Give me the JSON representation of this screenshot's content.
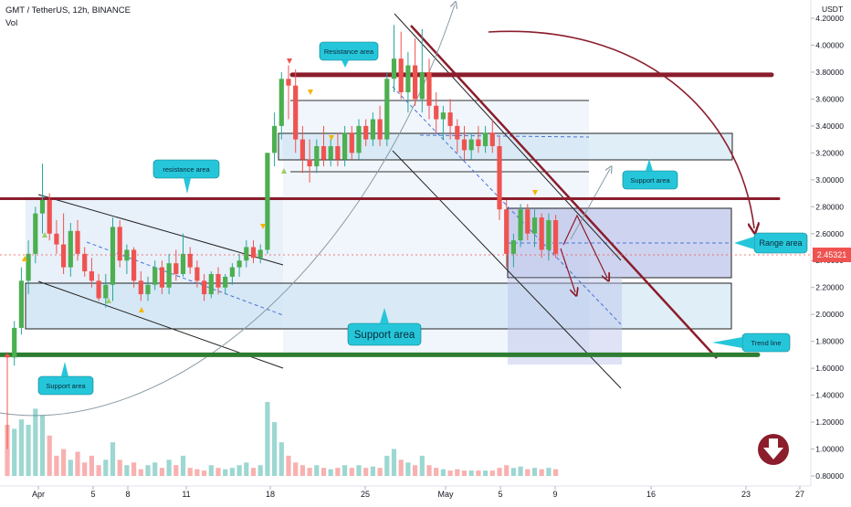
{
  "header": {
    "symbol_line": "GMT / TetherUS, 12h, BINANCE",
    "volume_label": "Vol",
    "currency": "USDT"
  },
  "price_axis": {
    "ticks": [
      "4.20000",
      "4.00000",
      "3.80000",
      "3.60000",
      "3.40000",
      "3.20000",
      "3.00000",
      "2.80000",
      "2.60000",
      "2.40000",
      "2.20000",
      "2.00000",
      "1.80000",
      "1.60000",
      "1.40000",
      "1.20000",
      "1.00000",
      "0.80000"
    ],
    "current_price": "2.45321"
  },
  "time_axis": {
    "ticks": [
      "Apr",
      "5",
      "8",
      "11",
      "18",
      "25",
      "May",
      "5",
      "9",
      "16",
      "23",
      "27"
    ]
  },
  "annotations": {
    "resistance_upper": "Resistance area",
    "resistance_left": "resistance area",
    "support_right": "Support area",
    "range": "Range area",
    "support_center": "Support area",
    "trend_line": "Trend line",
    "support_left": "Support area"
  },
  "colors": {
    "up": "#26a69a",
    "up_body": "#4caf50",
    "down": "#ef5350",
    "zone_fill": "#d6e4f5",
    "callout": "#26c6da",
    "resistance_line": "#8b1d2c",
    "support_line": "#2e7d32",
    "arrow_dark_red": "#8b1d2c"
  },
  "chart_data": {
    "type": "candlestick",
    "interval": "12h",
    "ylim": [
      0.75,
      4.3
    ],
    "xlim": [
      -3,
      121
    ],
    "candles": [
      {
        "t": 0,
        "o": 1.7,
        "h": 1.72,
        "l": 1.0,
        "c": 1.68
      },
      {
        "t": 1,
        "o": 1.68,
        "h": 1.95,
        "l": 1.62,
        "c": 1.9
      },
      {
        "t": 2,
        "o": 1.9,
        "h": 2.35,
        "l": 1.85,
        "c": 2.25
      },
      {
        "t": 3,
        "o": 2.25,
        "h": 2.55,
        "l": 2.15,
        "c": 2.45
      },
      {
        "t": 4,
        "o": 2.45,
        "h": 2.8,
        "l": 2.38,
        "c": 2.75
      },
      {
        "t": 5,
        "o": 2.75,
        "h": 3.12,
        "l": 2.6,
        "c": 2.85
      },
      {
        "t": 6,
        "o": 2.85,
        "h": 2.9,
        "l": 2.55,
        "c": 2.6
      },
      {
        "t": 7,
        "o": 2.6,
        "h": 2.7,
        "l": 2.45,
        "c": 2.52
      },
      {
        "t": 8,
        "o": 2.52,
        "h": 2.75,
        "l": 2.3,
        "c": 2.35
      },
      {
        "t": 9,
        "o": 2.35,
        "h": 2.68,
        "l": 2.28,
        "c": 2.62
      },
      {
        "t": 10,
        "o": 2.62,
        "h": 2.7,
        "l": 2.4,
        "c": 2.45
      },
      {
        "t": 11,
        "o": 2.45,
        "h": 2.5,
        "l": 2.28,
        "c": 2.32
      },
      {
        "t": 12,
        "o": 2.32,
        "h": 2.42,
        "l": 2.2,
        "c": 2.25
      },
      {
        "t": 13,
        "o": 2.25,
        "h": 2.3,
        "l": 2.1,
        "c": 2.12
      },
      {
        "t": 14,
        "o": 2.12,
        "h": 2.3,
        "l": 2.05,
        "c": 2.22
      },
      {
        "t": 15,
        "o": 2.22,
        "h": 2.72,
        "l": 2.1,
        "c": 2.65
      },
      {
        "t": 16,
        "o": 2.65,
        "h": 2.7,
        "l": 2.35,
        "c": 2.4
      },
      {
        "t": 17,
        "o": 2.4,
        "h": 2.52,
        "l": 2.3,
        "c": 2.48
      },
      {
        "t": 18,
        "o": 2.48,
        "h": 2.5,
        "l": 2.2,
        "c": 2.25
      },
      {
        "t": 19,
        "o": 2.25,
        "h": 2.32,
        "l": 2.1,
        "c": 2.15
      },
      {
        "t": 20,
        "o": 2.15,
        "h": 2.28,
        "l": 2.1,
        "c": 2.22
      },
      {
        "t": 21,
        "o": 2.22,
        "h": 2.4,
        "l": 2.18,
        "c": 2.35
      },
      {
        "t": 22,
        "o": 2.35,
        "h": 2.4,
        "l": 2.15,
        "c": 2.2
      },
      {
        "t": 23,
        "o": 2.2,
        "h": 2.45,
        "l": 2.15,
        "c": 2.38
      },
      {
        "t": 24,
        "o": 2.38,
        "h": 2.48,
        "l": 2.25,
        "c": 2.3
      },
      {
        "t": 25,
        "o": 2.3,
        "h": 2.6,
        "l": 2.28,
        "c": 2.45
      },
      {
        "t": 26,
        "o": 2.45,
        "h": 2.5,
        "l": 2.3,
        "c": 2.35
      },
      {
        "t": 27,
        "o": 2.35,
        "h": 2.4,
        "l": 2.2,
        "c": 2.25
      },
      {
        "t": 28,
        "o": 2.25,
        "h": 2.3,
        "l": 2.1,
        "c": 2.15
      },
      {
        "t": 29,
        "o": 2.15,
        "h": 2.32,
        "l": 2.12,
        "c": 2.3
      },
      {
        "t": 30,
        "o": 2.3,
        "h": 2.35,
        "l": 2.15,
        "c": 2.2
      },
      {
        "t": 31,
        "o": 2.2,
        "h": 2.3,
        "l": 2.15,
        "c": 2.28
      },
      {
        "t": 32,
        "o": 2.28,
        "h": 2.38,
        "l": 2.22,
        "c": 2.35
      },
      {
        "t": 33,
        "o": 2.35,
        "h": 2.45,
        "l": 2.28,
        "c": 2.4
      },
      {
        "t": 34,
        "o": 2.4,
        "h": 2.55,
        "l": 2.35,
        "c": 2.5
      },
      {
        "t": 35,
        "o": 2.5,
        "h": 2.55,
        "l": 2.38,
        "c": 2.42
      },
      {
        "t": 36,
        "o": 2.42,
        "h": 2.52,
        "l": 2.38,
        "c": 2.48
      },
      {
        "t": 37,
        "o": 2.48,
        "h": 3.2,
        "l": 2.45,
        "c": 3.2
      },
      {
        "t": 38,
        "o": 3.2,
        "h": 3.5,
        "l": 3.1,
        "c": 3.4
      },
      {
        "t": 39,
        "o": 3.4,
        "h": 3.8,
        "l": 3.3,
        "c": 3.75
      },
      {
        "t": 40,
        "o": 3.75,
        "h": 3.85,
        "l": 3.45,
        "c": 3.7
      },
      {
        "t": 41,
        "o": 3.7,
        "h": 3.82,
        "l": 3.2,
        "c": 3.3
      },
      {
        "t": 42,
        "o": 3.3,
        "h": 3.4,
        "l": 3.05,
        "c": 3.15
      },
      {
        "t": 43,
        "o": 3.15,
        "h": 3.3,
        "l": 2.98,
        "c": 3.1
      },
      {
        "t": 44,
        "o": 3.1,
        "h": 3.3,
        "l": 3.05,
        "c": 3.25
      },
      {
        "t": 45,
        "o": 3.25,
        "h": 3.4,
        "l": 3.1,
        "c": 3.15
      },
      {
        "t": 46,
        "o": 3.15,
        "h": 3.3,
        "l": 3.1,
        "c": 3.25
      },
      {
        "t": 47,
        "o": 3.25,
        "h": 3.35,
        "l": 3.1,
        "c": 3.15
      },
      {
        "t": 48,
        "o": 3.15,
        "h": 3.4,
        "l": 3.1,
        "c": 3.35
      },
      {
        "t": 49,
        "o": 3.35,
        "h": 3.4,
        "l": 3.15,
        "c": 3.2
      },
      {
        "t": 50,
        "o": 3.2,
        "h": 3.45,
        "l": 3.15,
        "c": 3.4
      },
      {
        "t": 51,
        "o": 3.4,
        "h": 3.45,
        "l": 3.25,
        "c": 3.3
      },
      {
        "t": 52,
        "o": 3.3,
        "h": 3.5,
        "l": 3.25,
        "c": 3.45
      },
      {
        "t": 53,
        "o": 3.45,
        "h": 3.55,
        "l": 3.25,
        "c": 3.3
      },
      {
        "t": 54,
        "o": 3.3,
        "h": 3.8,
        "l": 3.25,
        "c": 3.75
      },
      {
        "t": 55,
        "o": 3.75,
        "h": 4.15,
        "l": 3.65,
        "c": 3.9
      },
      {
        "t": 56,
        "o": 3.9,
        "h": 4.1,
        "l": 3.6,
        "c": 3.65
      },
      {
        "t": 57,
        "o": 3.65,
        "h": 3.95,
        "l": 3.5,
        "c": 3.85
      },
      {
        "t": 58,
        "o": 3.85,
        "h": 4.05,
        "l": 3.55,
        "c": 3.6
      },
      {
        "t": 59,
        "o": 3.6,
        "h": 4.12,
        "l": 3.5,
        "c": 3.8
      },
      {
        "t": 60,
        "o": 3.8,
        "h": 3.9,
        "l": 3.45,
        "c": 3.55
      },
      {
        "t": 61,
        "o": 3.55,
        "h": 3.65,
        "l": 3.35,
        "c": 3.45
      },
      {
        "t": 62,
        "o": 3.45,
        "h": 3.55,
        "l": 3.3,
        "c": 3.5
      },
      {
        "t": 63,
        "o": 3.5,
        "h": 3.6,
        "l": 3.3,
        "c": 3.4
      },
      {
        "t": 64,
        "o": 3.4,
        "h": 3.45,
        "l": 3.2,
        "c": 3.3
      },
      {
        "t": 65,
        "o": 3.3,
        "h": 3.4,
        "l": 3.15,
        "c": 3.22
      },
      {
        "t": 66,
        "o": 3.22,
        "h": 3.35,
        "l": 3.15,
        "c": 3.3
      },
      {
        "t": 67,
        "o": 3.3,
        "h": 3.4,
        "l": 3.2,
        "c": 3.25
      },
      {
        "t": 68,
        "o": 3.25,
        "h": 3.4,
        "l": 3.2,
        "c": 3.35
      },
      {
        "t": 69,
        "o": 3.35,
        "h": 3.45,
        "l": 3.2,
        "c": 3.25
      },
      {
        "t": 70,
        "o": 3.25,
        "h": 3.32,
        "l": 2.7,
        "c": 2.78
      },
      {
        "t": 71,
        "o": 2.78,
        "h": 2.85,
        "l": 2.35,
        "c": 2.45
      },
      {
        "t": 72,
        "o": 2.45,
        "h": 2.6,
        "l": 2.35,
        "c": 2.55
      },
      {
        "t": 73,
        "o": 2.55,
        "h": 2.82,
        "l": 2.5,
        "c": 2.78
      },
      {
        "t": 74,
        "o": 2.78,
        "h": 2.82,
        "l": 2.55,
        "c": 2.6
      },
      {
        "t": 75,
        "o": 2.6,
        "h": 2.78,
        "l": 2.5,
        "c": 2.72
      },
      {
        "t": 76,
        "o": 2.72,
        "h": 2.75,
        "l": 2.42,
        "c": 2.48
      },
      {
        "t": 77,
        "o": 2.48,
        "h": 2.75,
        "l": 2.4,
        "c": 2.7
      },
      {
        "t": 78,
        "o": 2.7,
        "h": 2.74,
        "l": 2.42,
        "c": 2.45
      }
    ],
    "volume": [
      1.18,
      1.15,
      1.22,
      1.18,
      1.3,
      1.25,
      1.1,
      0.95,
      1.0,
      0.92,
      0.98,
      0.9,
      0.95,
      0.88,
      0.92,
      1.05,
      0.92,
      0.88,
      0.9,
      0.85,
      0.88,
      0.9,
      0.86,
      0.92,
      0.88,
      0.95,
      0.86,
      0.85,
      0.84,
      0.88,
      0.86,
      0.85,
      0.86,
      0.88,
      0.9,
      0.86,
      0.88,
      1.35,
      1.2,
      1.05,
      0.95,
      0.9,
      0.88,
      0.86,
      0.88,
      0.86,
      0.85,
      0.86,
      0.88,
      0.86,
      0.88,
      0.86,
      0.87,
      0.86,
      0.95,
      1.0,
      0.92,
      0.9,
      0.88,
      0.95,
      0.88,
      0.86,
      0.85,
      0.84,
      0.85,
      0.84,
      0.84,
      0.84,
      0.84,
      0.84,
      0.86,
      0.88,
      0.86,
      0.87,
      0.85,
      0.86,
      0.85,
      0.86,
      0.85
    ],
    "horizontal_levels": [
      {
        "kind": "resistance",
        "price": 3.78
      },
      {
        "kind": "resistance",
        "price": 2.86
      },
      {
        "kind": "support",
        "price": 1.7
      }
    ]
  }
}
